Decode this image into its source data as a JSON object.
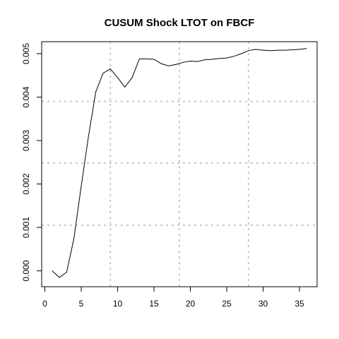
{
  "chart_data": {
    "type": "line",
    "title": "CUSUM Shock LTOT on FBCF",
    "xlabel": "",
    "ylabel": "",
    "xlim": [
      0,
      37
    ],
    "ylim": [
      -0.00035,
      0.0053
    ],
    "x_ticks": [
      0,
      5,
      10,
      15,
      20,
      25,
      30,
      35
    ],
    "x_tick_labels": [
      "0",
      "5",
      "10",
      "15",
      "20",
      "25",
      "30",
      "35"
    ],
    "y_ticks": [
      0.0,
      0.001,
      0.002,
      0.003,
      0.004,
      0.005
    ],
    "y_tick_labels": [
      "0.000",
      "0.001",
      "0.002",
      "0.003",
      "0.004",
      "0.005"
    ],
    "grid": {
      "vertical_x": [
        9,
        18.5,
        28
      ],
      "horizontal_y": [
        0.00105,
        0.00248,
        0.0039
      ]
    },
    "x": [
      1,
      2,
      3,
      4,
      5,
      6,
      7,
      8,
      9,
      10,
      11,
      12,
      13,
      14,
      15,
      16,
      17,
      18,
      19,
      20,
      21,
      22,
      23,
      24,
      25,
      26,
      27,
      28,
      29,
      30,
      31,
      32,
      33,
      34,
      35,
      36
    ],
    "series": [
      {
        "values": [
          0.0,
          -0.00015,
          -3e-05,
          0.00075,
          0.00195,
          0.0031,
          0.00412,
          0.00455,
          0.00465,
          0.00445,
          0.00423,
          0.00445,
          0.00488,
          0.00488,
          0.00487,
          0.00477,
          0.00472,
          0.00475,
          0.0048,
          0.00483,
          0.00482,
          0.00486,
          0.00487,
          0.00489,
          0.0049,
          0.00494,
          0.005,
          0.00507,
          0.0051,
          0.00508,
          0.00507,
          0.00508,
          0.00508,
          0.00509,
          0.0051,
          0.00512
        ]
      }
    ]
  }
}
